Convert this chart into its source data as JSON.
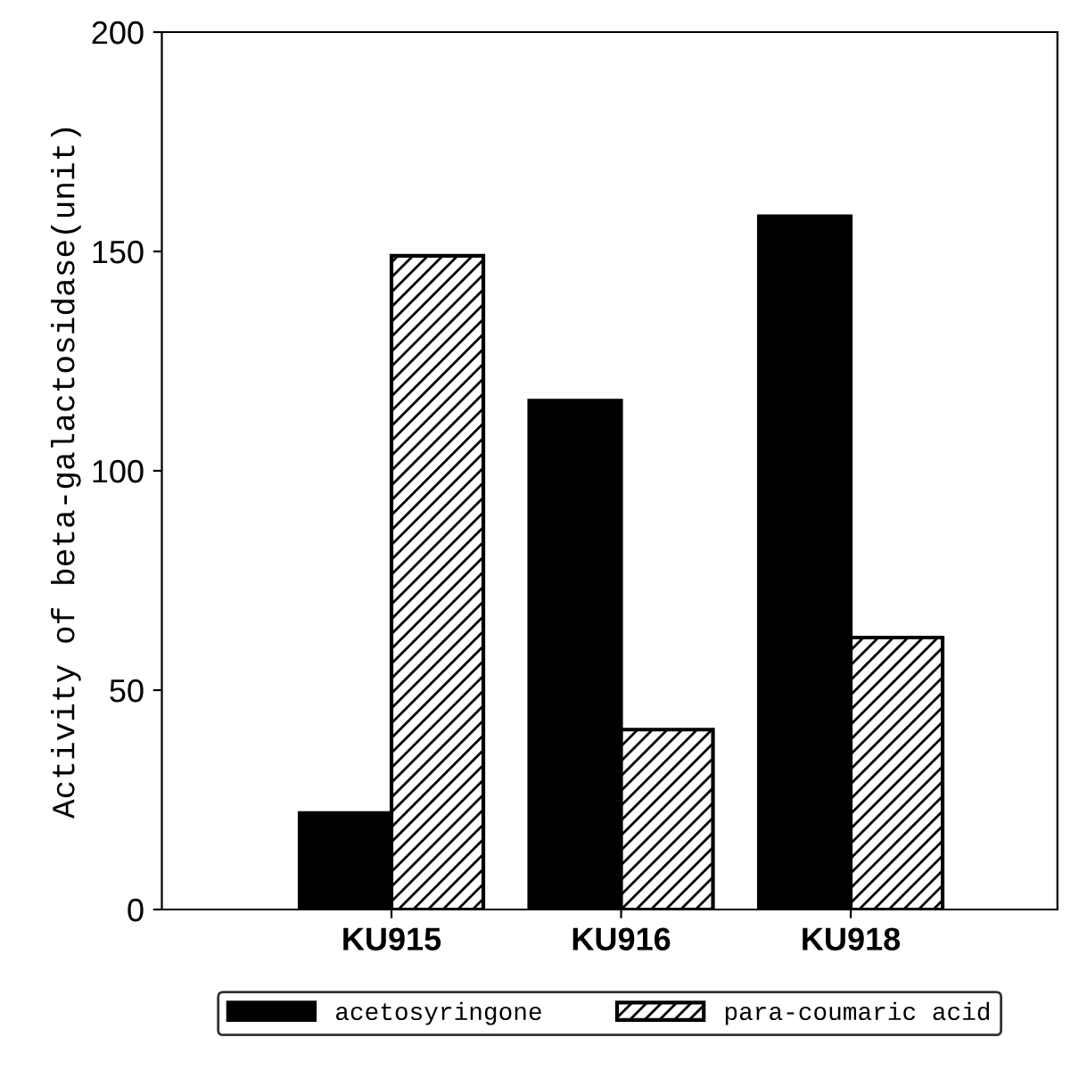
{
  "chart_data": {
    "type": "bar",
    "ylabel": "Activity of beta-galactosidase(unit)",
    "categories": [
      "KU915",
      "KU916",
      "KU918"
    ],
    "series": [
      {
        "name": "acetosyringone",
        "color": "#000000",
        "values": [
          22,
          116,
          158
        ]
      },
      {
        "name": "para-coumaric acid",
        "color": "#000000",
        "values": [
          149,
          41,
          62
        ]
      }
    ],
    "ylim": [
      0,
      200
    ],
    "yticks": [
      0,
      50,
      100,
      150,
      200
    ],
    "grid": false,
    "legend": "bottom"
  }
}
